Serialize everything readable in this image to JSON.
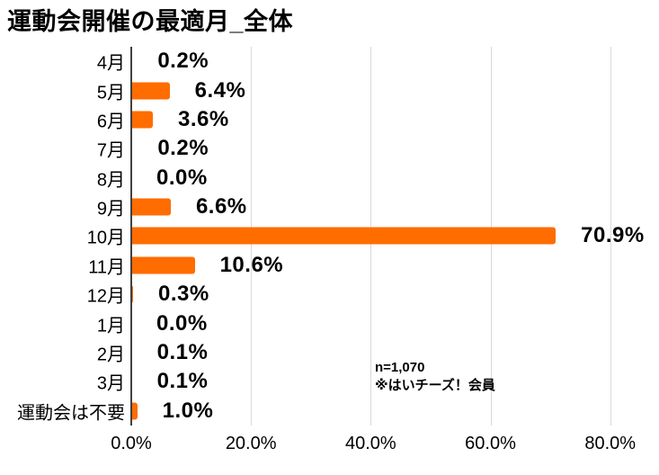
{
  "title": "運動会開催の最適月_全体",
  "annotation": {
    "line1": "n=1,070",
    "line2": "※はいチーズ！会員"
  },
  "colors": {
    "bar": "#FF6C00",
    "axis_line": "#404040",
    "gridline": "#D9D9D9",
    "text": "#000000",
    "background": "#FFFFFF"
  },
  "chart_data": {
    "type": "bar",
    "orientation": "horizontal",
    "title": "運動会開催の最適月_全体",
    "categories": [
      "4月",
      "5月",
      "6月",
      "7月",
      "8月",
      "9月",
      "10月",
      "11月",
      "12月",
      "1月",
      "2月",
      "3月",
      "運動会は不要"
    ],
    "values": [
      0.2,
      6.4,
      3.6,
      0.2,
      0.0,
      6.6,
      70.9,
      10.6,
      0.3,
      0.0,
      0.1,
      0.1,
      1.0
    ],
    "value_labels": [
      "0.2%",
      "6.4%",
      "3.6%",
      "0.2%",
      "0.0%",
      "6.6%",
      "70.9%",
      "10.6%",
      "0.3%",
      "0.0%",
      "0.1%",
      "0.1%",
      "1.0%"
    ],
    "xlabel": "",
    "ylabel": "",
    "xlim": [
      0,
      88
    ],
    "x_tick_values": [
      0,
      20,
      40,
      60,
      80
    ],
    "x_tick_labels": [
      "0.0%",
      "20.0%",
      "40.0%",
      "60.0%",
      "80.0%"
    ],
    "grid": true,
    "legend": false,
    "annotations": [
      "n=1,070",
      "※はいチーズ！会員"
    ]
  }
}
